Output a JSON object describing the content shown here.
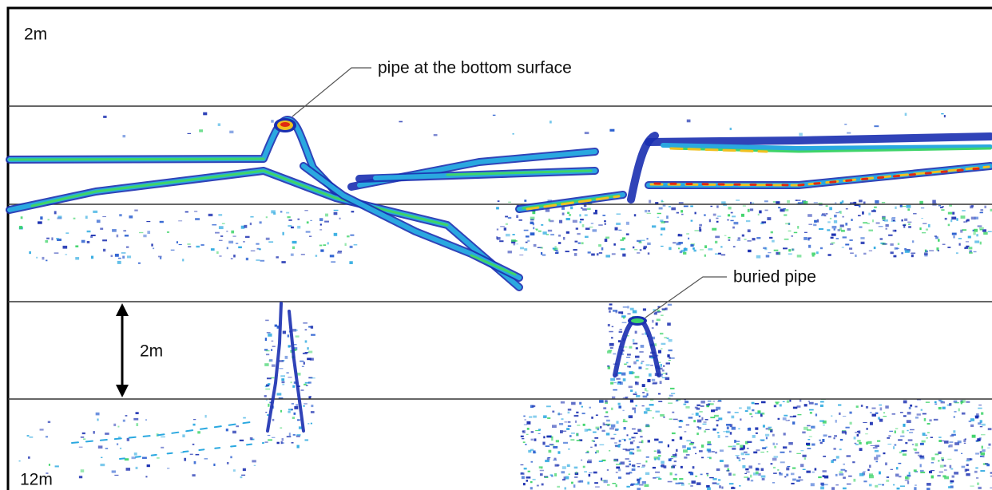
{
  "labels": {
    "top_depth": "2m",
    "bottom_depth": "12m",
    "scale": "2m"
  },
  "annotations": {
    "surface_pipe": "pipe at the bottom surface",
    "buried_pipe": "buried pipe"
  }
}
